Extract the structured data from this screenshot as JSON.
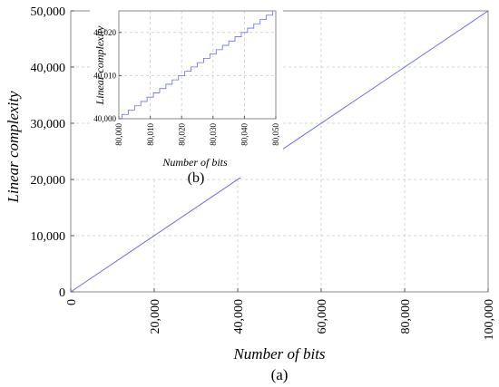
{
  "chart_data": [
    {
      "panel": "main",
      "type": "line",
      "caption": "(a)",
      "xlabel": "Number of bits",
      "ylabel": "Linear complexity",
      "xlim": [
        0,
        100000
      ],
      "ylim": [
        0,
        50000
      ],
      "xticks": [
        0,
        20000,
        40000,
        60000,
        80000,
        100000
      ],
      "xtick_labels": [
        "0",
        "20,000",
        "40,000",
        "60,000",
        "80,000",
        "100,000"
      ],
      "yticks": [
        0,
        10000,
        20000,
        30000,
        40000,
        50000
      ],
      "ytick_labels": [
        "0",
        "10,000",
        "20,000",
        "30,000",
        "40,000",
        "50,000"
      ],
      "grid": true,
      "series": [
        {
          "x": [
            0,
            100000
          ],
          "y": [
            0,
            50000
          ],
          "color": "#6a6af0"
        }
      ]
    },
    {
      "panel": "inset",
      "type": "line",
      "caption": "(b)",
      "xlabel": "Number of bits",
      "ylabel": "Linear complexity",
      "xlim": [
        80000,
        80050
      ],
      "ylim": [
        40000,
        40025
      ],
      "xticks": [
        80000,
        80010,
        80020,
        80030,
        80040,
        80050
      ],
      "xtick_labels": [
        "80,000",
        "80,010",
        "80,020",
        "80,030",
        "80,040",
        "80,050"
      ],
      "yticks": [
        40000,
        40010,
        40020
      ],
      "ytick_labels": [
        "40,000",
        "40,010",
        "40,020"
      ],
      "grid": true,
      "step_profile": "staircase with one-bit steps, linear complexity about half the number of bits",
      "series": [
        {
          "x": [
            80000,
            80050
          ],
          "y": [
            40000,
            40025
          ],
          "color": "#6a6af0"
        }
      ]
    }
  ]
}
